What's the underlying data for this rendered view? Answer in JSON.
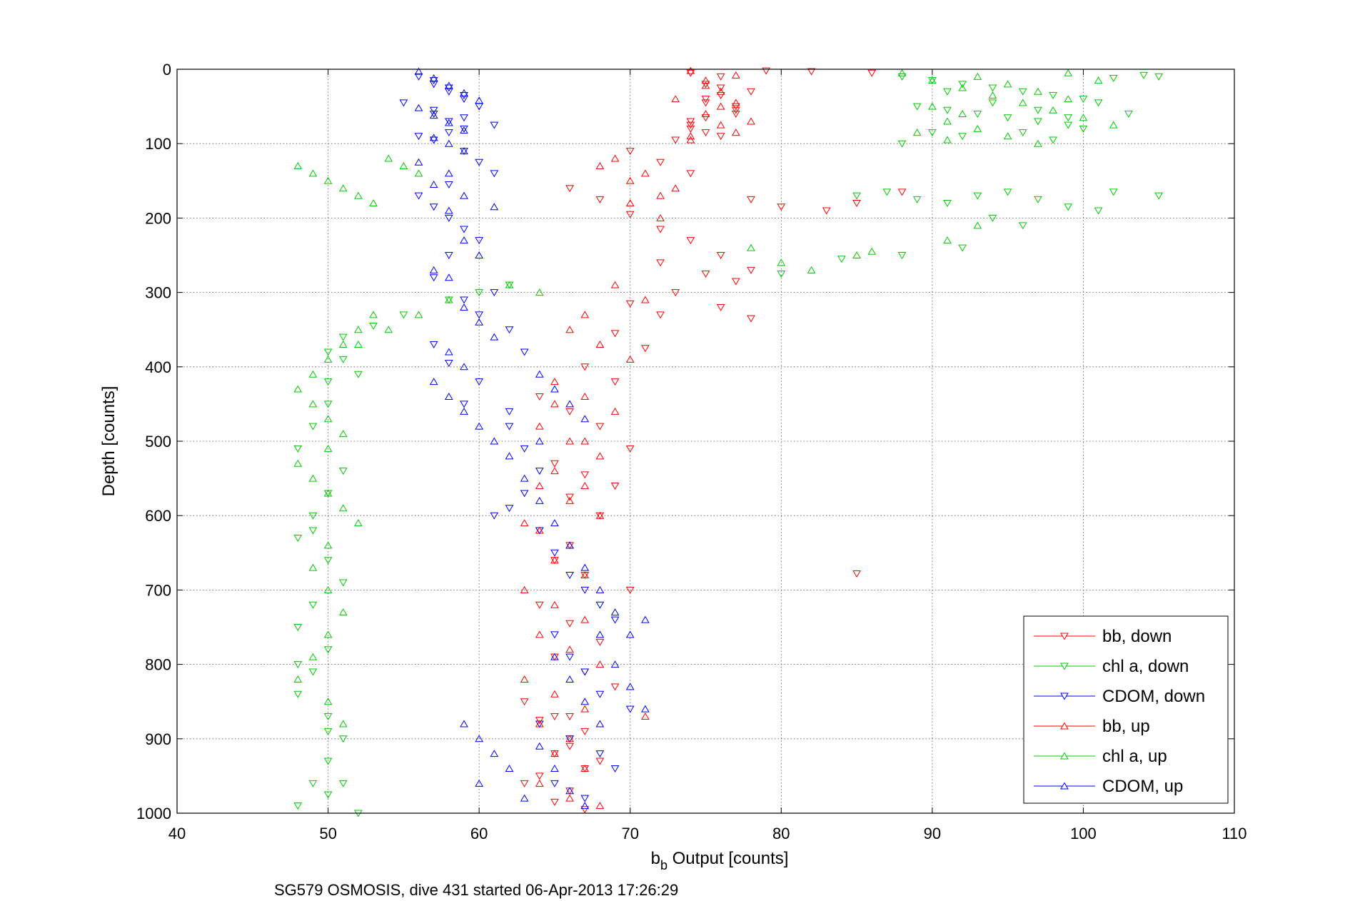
{
  "chart_data": {
    "type": "scatter",
    "xlabel_main": "b",
    "xlabel_sub": "b",
    "xlabel_rest": " Output [counts]",
    "ylabel": "Depth [counts]",
    "caption": "SG579 OSMOSIS, dive 431 started 06-Apr-2013 17:26:29",
    "xlim": [
      40,
      110
    ],
    "ylim": [
      0,
      1000
    ],
    "y_reversed": true,
    "grid": true,
    "legend_position": "bottom-right",
    "xticks": [
      "40",
      "50",
      "60",
      "70",
      "80",
      "90",
      "100",
      "110"
    ],
    "yticks": [
      "0",
      "100",
      "200",
      "300",
      "400",
      "500",
      "600",
      "700",
      "800",
      "900",
      "1000"
    ],
    "series": [
      {
        "name": "bb, down",
        "color": "#ff0000",
        "marker": "triangle-down",
        "x": [
          74,
          75,
          76,
          77,
          75,
          74,
          76,
          78,
          75,
          77,
          74,
          76,
          73,
          75,
          77,
          76,
          74,
          75,
          79,
          82,
          86,
          70,
          72,
          74,
          66,
          68,
          70,
          72,
          78,
          80,
          83,
          85,
          88,
          74,
          76,
          78,
          72,
          75,
          77,
          73,
          76,
          78,
          70,
          72,
          69,
          71,
          67,
          69,
          64,
          66,
          68,
          70,
          65,
          67,
          69,
          66,
          68,
          64,
          66,
          65,
          67,
          70,
          64,
          66,
          68,
          65,
          67,
          69,
          63,
          65,
          67,
          66,
          68,
          64,
          66,
          65,
          67,
          63,
          64,
          66,
          65,
          67,
          66,
          85
        ],
        "y": [
          5,
          20,
          35,
          50,
          65,
          80,
          10,
          30,
          45,
          60,
          75,
          90,
          95,
          40,
          55,
          25,
          70,
          85,
          2,
          3,
          5,
          110,
          125,
          140,
          160,
          175,
          195,
          215,
          175,
          185,
          190,
          180,
          165,
          230,
          250,
          270,
          260,
          275,
          285,
          300,
          320,
          335,
          315,
          330,
          355,
          375,
          400,
          420,
          440,
          460,
          480,
          510,
          530,
          545,
          560,
          575,
          600,
          620,
          640,
          660,
          680,
          700,
          720,
          745,
          770,
          790,
          810,
          830,
          850,
          870,
          890,
          910,
          930,
          950,
          970,
          985,
          995,
          960,
          875,
          900,
          920,
          940,
          870,
          678
        ]
      },
      {
        "name": "chl a, down",
        "color": "#00cc00",
        "marker": "triangle-down",
        "x": [
          88,
          90,
          92,
          94,
          96,
          98,
          100,
          102,
          104,
          105,
          89,
          91,
          93,
          95,
          97,
          99,
          101,
          103,
          90,
          92,
          98,
          100,
          88,
          91,
          94,
          97,
          99,
          96,
          85,
          87,
          89,
          91,
          93,
          95,
          97,
          99,
          101,
          102,
          105,
          94,
          96,
          92,
          80,
          84,
          88,
          50,
          50,
          49,
          48,
          51,
          50,
          49,
          48,
          50,
          51,
          49,
          48,
          50,
          49,
          48,
          50,
          51,
          50,
          49,
          48,
          50,
          52,
          51,
          50,
          48,
          49,
          50,
          51,
          52,
          62,
          60,
          58,
          55,
          53,
          51
        ],
        "y": [
          10,
          15,
          20,
          25,
          30,
          35,
          40,
          12,
          8,
          10,
          50,
          55,
          60,
          65,
          70,
          75,
          45,
          60,
          85,
          90,
          95,
          80,
          100,
          30,
          45,
          55,
          65,
          85,
          170,
          165,
          175,
          180,
          170,
          165,
          175,
          185,
          190,
          165,
          170,
          200,
          210,
          240,
          275,
          255,
          250,
          420,
          450,
          480,
          510,
          540,
          570,
          600,
          630,
          660,
          690,
          720,
          750,
          780,
          810,
          840,
          870,
          900,
          930,
          960,
          990,
          975,
          1000,
          960,
          890,
          800,
          620,
          380,
          390,
          410,
          290,
          300,
          310,
          330,
          345,
          360
        ]
      },
      {
        "name": "CDOM, down",
        "color": "#0000ff",
        "marker": "triangle-down",
        "x": [
          56,
          57,
          58,
          59,
          60,
          57,
          58,
          59,
          56,
          57,
          58,
          59,
          55,
          57,
          59,
          61,
          58,
          57,
          59,
          60,
          61,
          58,
          56,
          57,
          58,
          59,
          60,
          58,
          57,
          61,
          59,
          60,
          62,
          57,
          58,
          60,
          59,
          62,
          63,
          64,
          63,
          62,
          61,
          64,
          65,
          66,
          67,
          68,
          69,
          65,
          66,
          67,
          68,
          70,
          64,
          66,
          68,
          69,
          65,
          67,
          63,
          62
        ],
        "y": [
          10,
          20,
          30,
          40,
          50,
          60,
          70,
          80,
          90,
          15,
          25,
          35,
          45,
          55,
          65,
          75,
          85,
          95,
          110,
          125,
          140,
          155,
          170,
          185,
          200,
          215,
          230,
          250,
          280,
          300,
          310,
          330,
          350,
          370,
          395,
          420,
          450,
          480,
          510,
          540,
          570,
          590,
          600,
          620,
          650,
          680,
          700,
          720,
          740,
          760,
          790,
          810,
          840,
          860,
          880,
          900,
          920,
          940,
          960,
          980,
          380,
          460
        ]
      },
      {
        "name": "bb, up",
        "color": "#ff0000",
        "marker": "triangle-up",
        "x": [
          74,
          75,
          76,
          77,
          75,
          76,
          74,
          77,
          73,
          78,
          75,
          76,
          77,
          74,
          69,
          71,
          73,
          70,
          72,
          68,
          70,
          72,
          69,
          71,
          67,
          66,
          68,
          70,
          65,
          67,
          69,
          64,
          66,
          68,
          65,
          67,
          66,
          68,
          64,
          66,
          65,
          67,
          63,
          65,
          67,
          64,
          66,
          68,
          63,
          65,
          67,
          64,
          66,
          65,
          67,
          64,
          66,
          68,
          65,
          67,
          64,
          63,
          71
        ],
        "y": [
          2,
          15,
          30,
          45,
          60,
          75,
          90,
          8,
          40,
          70,
          22,
          50,
          85,
          95,
          120,
          140,
          160,
          180,
          200,
          130,
          150,
          170,
          290,
          310,
          330,
          350,
          370,
          390,
          420,
          440,
          460,
          480,
          500,
          520,
          540,
          560,
          580,
          600,
          620,
          640,
          660,
          680,
          700,
          720,
          740,
          760,
          780,
          800,
          820,
          840,
          860,
          880,
          900,
          920,
          940,
          960,
          980,
          990,
          450,
          500,
          560,
          610,
          870
        ]
      },
      {
        "name": "chl a, up",
        "color": "#00cc00",
        "marker": "triangle-up",
        "x": [
          88,
          90,
          92,
          94,
          96,
          98,
          100,
          102,
          89,
          91,
          93,
          95,
          97,
          99,
          90,
          92,
          91,
          93,
          95,
          97,
          99,
          101,
          78,
          80,
          82,
          85,
          86,
          91,
          93,
          48,
          49,
          50,
          51,
          52,
          53,
          54,
          55,
          56,
          53,
          52,
          51,
          50,
          49,
          48,
          49,
          50,
          51,
          50,
          48,
          49,
          50,
          51,
          52,
          50,
          49,
          50,
          51,
          50,
          49,
          48,
          50,
          51,
          62,
          64,
          58,
          56,
          54,
          52
        ],
        "y": [
          5,
          15,
          25,
          35,
          45,
          55,
          65,
          75,
          85,
          95,
          10,
          20,
          30,
          40,
          50,
          60,
          70,
          80,
          90,
          100,
          5,
          15,
          240,
          260,
          270,
          250,
          245,
          230,
          210,
          130,
          140,
          150,
          160,
          170,
          180,
          120,
          130,
          140,
          330,
          350,
          370,
          390,
          410,
          430,
          450,
          470,
          490,
          510,
          530,
          550,
          570,
          590,
          610,
          640,
          670,
          700,
          730,
          760,
          790,
          820,
          850,
          880,
          290,
          300,
          310,
          330,
          350,
          370
        ]
      },
      {
        "name": "CDOM, up",
        "color": "#0000ff",
        "marker": "triangle-up",
        "x": [
          56,
          57,
          58,
          59,
          60,
          56,
          57,
          58,
          59,
          57,
          58,
          59,
          56,
          58,
          57,
          59,
          61,
          58,
          59,
          60,
          57,
          58,
          59,
          60,
          61,
          58,
          59,
          57,
          58,
          59,
          60,
          61,
          62,
          63,
          64,
          65,
          66,
          67,
          68,
          69,
          70,
          65,
          66,
          67,
          68,
          64,
          65,
          66,
          67,
          68,
          69,
          70,
          71,
          59,
          60,
          61,
          62,
          60,
          63,
          64,
          65,
          66,
          67,
          64,
          71
        ],
        "y": [
          3,
          12,
          22,
          32,
          42,
          52,
          62,
          72,
          82,
          92,
          100,
          110,
          125,
          140,
          155,
          170,
          185,
          190,
          230,
          250,
          270,
          280,
          320,
          340,
          360,
          380,
          400,
          420,
          440,
          460,
          480,
          500,
          520,
          550,
          580,
          610,
          640,
          670,
          700,
          730,
          760,
          790,
          820,
          850,
          880,
          910,
          940,
          970,
          990,
          760,
          800,
          830,
          860,
          880,
          900,
          920,
          940,
          960,
          980,
          410,
          430,
          450,
          470,
          500,
          740
        ]
      }
    ]
  }
}
